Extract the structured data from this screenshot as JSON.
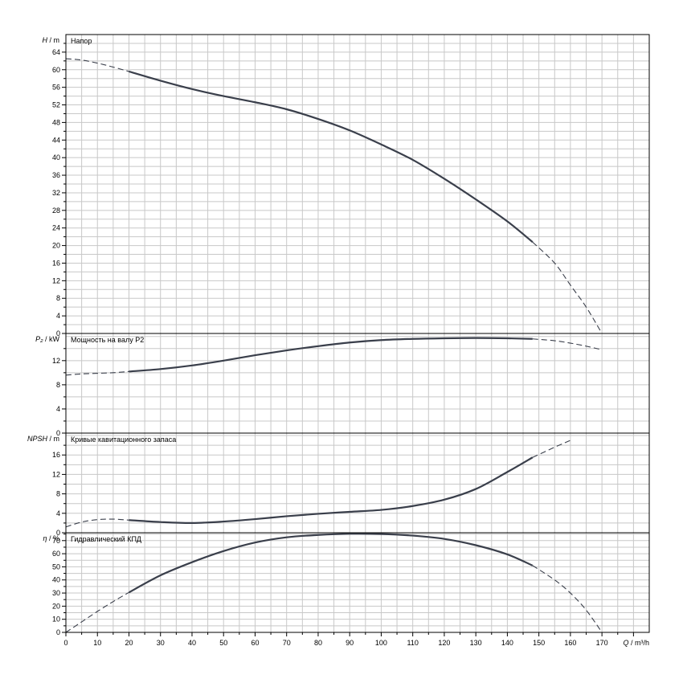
{
  "chart_data": [
    {
      "type": "line",
      "id": "head",
      "title": "Напор",
      "ylabel_symbol": "H",
      "ylabel_unit": "m",
      "ylim": [
        0,
        68
      ],
      "yticks": [
        0,
        4,
        8,
        12,
        16,
        20,
        24,
        28,
        32,
        36,
        40,
        44,
        48,
        52,
        56,
        60,
        64
      ],
      "series": [
        {
          "style": "dashed",
          "x": [
            0,
            5,
            10,
            15,
            20
          ],
          "y": [
            62.5,
            62.2,
            61.5,
            60.6,
            59.6
          ]
        },
        {
          "style": "solid",
          "x": [
            20,
            30,
            40,
            50,
            60,
            70,
            80,
            90,
            100,
            110,
            120,
            130,
            140,
            148
          ],
          "y": [
            59.6,
            57.5,
            55.6,
            54,
            52.6,
            51,
            48.8,
            46.2,
            43,
            39.5,
            35.2,
            30.5,
            25.5,
            20.8
          ]
        },
        {
          "style": "dashed",
          "x": [
            148,
            155,
            160,
            165,
            170
          ],
          "y": [
            20.8,
            16,
            11,
            6,
            0
          ]
        }
      ]
    },
    {
      "type": "line",
      "id": "power",
      "title": "Мощность на валу P2",
      "ylabel_symbol": "P₂",
      "ylabel_unit": "kW",
      "ylim": [
        0,
        16.5
      ],
      "yticks": [
        0,
        4,
        8,
        12
      ],
      "series": [
        {
          "style": "dashed",
          "x": [
            0,
            5,
            10,
            15,
            20
          ],
          "y": [
            9.6,
            9.8,
            9.9,
            10.0,
            10.2
          ]
        },
        {
          "style": "solid",
          "x": [
            20,
            30,
            40,
            50,
            60,
            70,
            80,
            90,
            100,
            110,
            120,
            130,
            140,
            148
          ],
          "y": [
            10.2,
            10.6,
            11.2,
            12.0,
            12.9,
            13.7,
            14.4,
            15.0,
            15.4,
            15.6,
            15.7,
            15.75,
            15.7,
            15.6
          ]
        },
        {
          "style": "dashed",
          "x": [
            148,
            155,
            160,
            165,
            170
          ],
          "y": [
            15.6,
            15.3,
            14.9,
            14.4,
            13.8
          ]
        }
      ]
    },
    {
      "type": "line",
      "id": "npsh",
      "title": "Кривые кавитационного запаса",
      "ylabel_symbol": "NPSH",
      "ylabel_unit": "m",
      "ylim": [
        0,
        20.5
      ],
      "yticks": [
        0,
        4,
        8,
        12,
        16
      ],
      "series": [
        {
          "style": "dashed",
          "x": [
            0,
            5,
            10,
            15,
            20
          ],
          "y": [
            1.2,
            2.2,
            2.7,
            2.8,
            2.6
          ]
        },
        {
          "style": "solid",
          "x": [
            20,
            30,
            40,
            50,
            60,
            70,
            80,
            90,
            100,
            110,
            120,
            130,
            140,
            148
          ],
          "y": [
            2.6,
            2.2,
            2.0,
            2.3,
            2.8,
            3.4,
            3.9,
            4.3,
            4.7,
            5.5,
            6.8,
            9.0,
            12.5,
            15.5
          ]
        },
        {
          "style": "dashed",
          "x": [
            148,
            155,
            160
          ],
          "y": [
            15.5,
            17.6,
            19.0
          ]
        }
      ]
    },
    {
      "type": "line",
      "id": "efficiency",
      "title": "Гидравлический КПД",
      "ylabel_symbol": "η",
      "ylabel_unit": "%",
      "ylim": [
        0,
        76
      ],
      "yticks": [
        0,
        10,
        20,
        30,
        40,
        50,
        60,
        70
      ],
      "series": [
        {
          "style": "dashed",
          "x": [
            0,
            5,
            10,
            15,
            20
          ],
          "y": [
            0,
            8,
            16,
            23.5,
            30.5
          ]
        },
        {
          "style": "solid",
          "x": [
            20,
            30,
            40,
            50,
            60,
            70,
            80,
            90,
            100,
            110,
            120,
            130,
            140,
            148
          ],
          "y": [
            30.5,
            43.5,
            53.5,
            62,
            68.5,
            72.5,
            74.3,
            75.2,
            75,
            73.8,
            71.3,
            66.5,
            59.5,
            51
          ]
        },
        {
          "style": "dashed",
          "x": [
            148,
            155,
            160,
            165,
            170
          ],
          "y": [
            51,
            40,
            30,
            17,
            0
          ]
        }
      ]
    }
  ],
  "x_axis": {
    "symbol": "Q",
    "unit": "m³/h",
    "xlim": [
      0,
      185
    ],
    "xticks": [
      0,
      10,
      20,
      30,
      40,
      50,
      60,
      70,
      80,
      90,
      100,
      110,
      120,
      130,
      140,
      150,
      160,
      170
    ]
  },
  "colors": {
    "curve": "#3a3f4b",
    "grid": "#c8c8c8",
    "frame": "#000000"
  }
}
